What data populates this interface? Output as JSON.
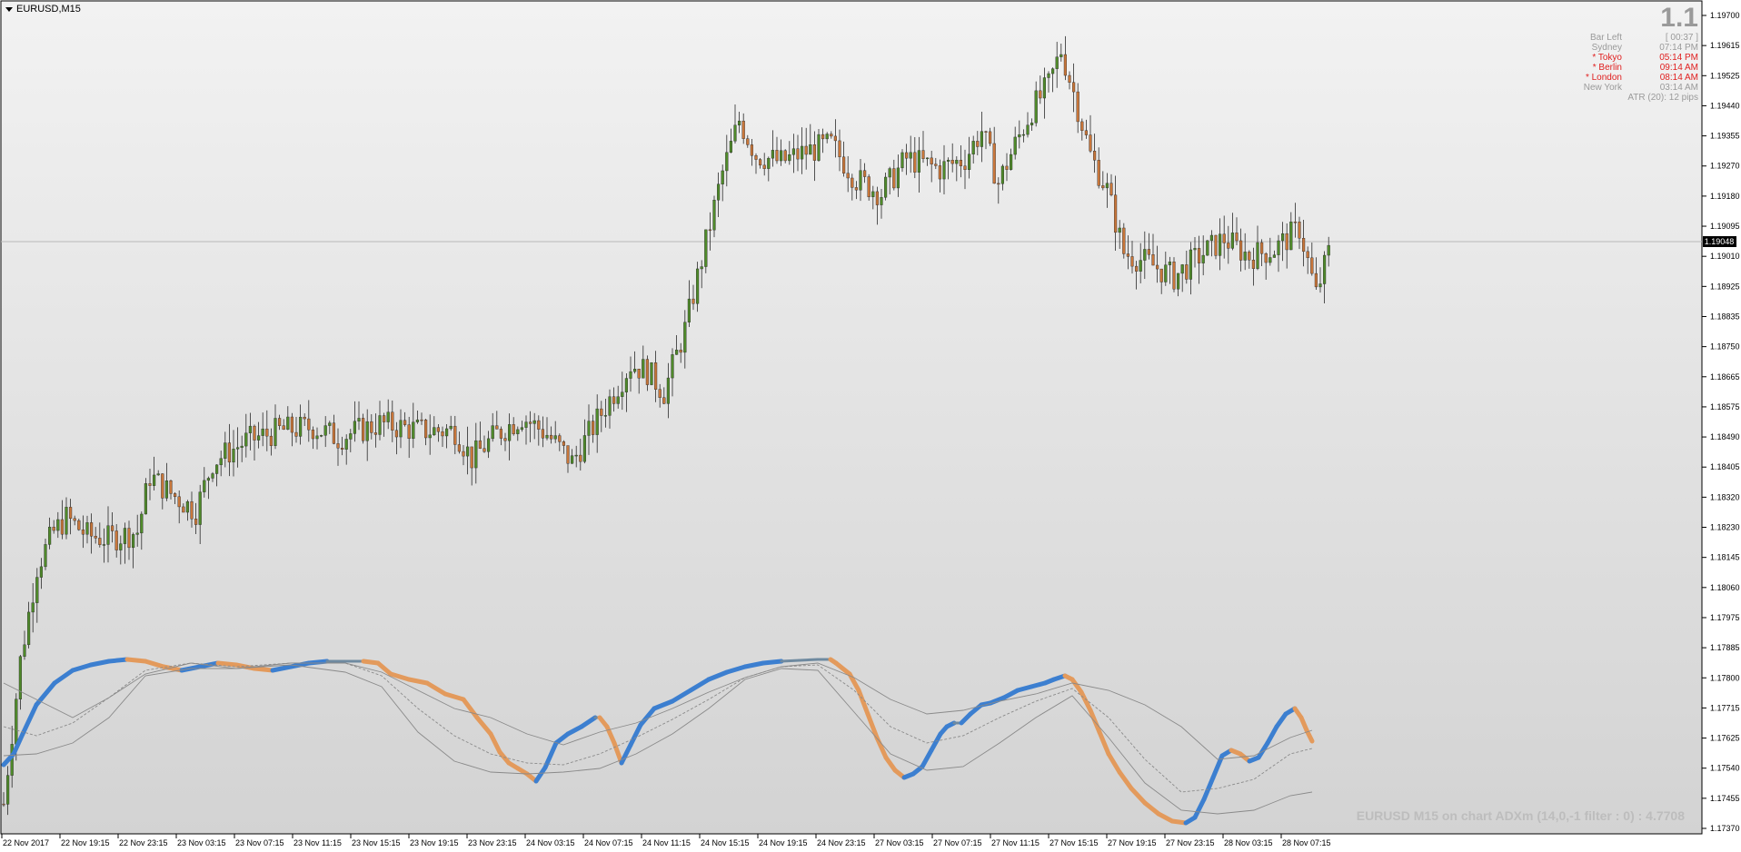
{
  "window": {
    "symbol": "EURUSD,M15"
  },
  "info_panel": {
    "spread": "1.1",
    "rows": [
      {
        "label": "Bar Left",
        "value": "[ 00:37 ]",
        "red": false
      },
      {
        "label": "Sydney",
        "value": "07:14 PM",
        "red": false
      },
      {
        "label": "* Tokyo",
        "value": "05:14 PM",
        "red": true
      },
      {
        "label": "* Berlin",
        "value": "09:14 AM",
        "red": true
      },
      {
        "label": "* London",
        "value": "08:14 AM",
        "red": true
      },
      {
        "label": "New York",
        "value": "03:14 AM",
        "red": false
      }
    ],
    "atr": "ATR (20): 12 pips"
  },
  "indicator_caption": "EURUSD M15 on chart ADXm (14,0,-1 filter : 0) : 4.7708",
  "current_price": "1.19048",
  "colors": {
    "bull": "#4f8a2a",
    "bear": "#c8763a",
    "adx_up": "#3c7fd0",
    "adx_down": "#e39a5c",
    "adx_neutral": "#6f8aa0",
    "band": "#8a8a8a"
  },
  "chart_data": {
    "type": "candlestick",
    "y_ticks": [
      "1.19700",
      "1.19615",
      "1.19525",
      "1.19440",
      "1.19355",
      "1.19270",
      "1.19180",
      "1.19095",
      "1.19010",
      "1.18925",
      "1.18835",
      "1.18750",
      "1.18665",
      "1.18575",
      "1.18490",
      "1.18405",
      "1.18320",
      "1.18230",
      "1.18145",
      "1.18060",
      "1.17975",
      "1.17885",
      "1.17800",
      "1.17715",
      "1.17625",
      "1.17540",
      "1.17455",
      "1.17370"
    ],
    "x_ticks": [
      "22 Nov 2017",
      "22 Nov 19:15",
      "22 Nov 23:15",
      "23 Nov 03:15",
      "23 Nov 07:15",
      "23 Nov 11:15",
      "23 Nov 15:15",
      "23 Nov 19:15",
      "23 Nov 23:15",
      "24 Nov 03:15",
      "24 Nov 07:15",
      "24 Nov 11:15",
      "24 Nov 15:15",
      "24 Nov 19:15",
      "24 Nov 23:15",
      "27 Nov 03:15",
      "27 Nov 07:15",
      "27 Nov 11:15",
      "27 Nov 15:15",
      "27 Nov 19:15",
      "27 Nov 23:15",
      "28 Nov 03:15",
      "28 Nov 07:15"
    ],
    "ylim": [
      1.1737,
      1.197
    ],
    "close_path": [
      [
        0,
        1.1744
      ],
      [
        4,
        1.1785
      ],
      [
        8,
        1.1812
      ],
      [
        12,
        1.1822
      ],
      [
        15,
        1.1826
      ],
      [
        20,
        1.1821
      ],
      [
        25,
        1.182
      ],
      [
        32,
        1.1822
      ],
      [
        35,
        1.1838
      ],
      [
        40,
        1.1833
      ],
      [
        46,
        1.1828
      ],
      [
        50,
        1.1842
      ],
      [
        58,
        1.1848
      ],
      [
        66,
        1.1851
      ],
      [
        74,
        1.1852
      ],
      [
        80,
        1.1849
      ],
      [
        90,
        1.1853
      ],
      [
        100,
        1.1851
      ],
      [
        108,
        1.1851
      ],
      [
        112,
        1.1843
      ],
      [
        118,
        1.185
      ],
      [
        124,
        1.1855
      ],
      [
        130,
        1.185
      ],
      [
        136,
        1.1842
      ],
      [
        140,
        1.185
      ],
      [
        146,
        1.1862
      ],
      [
        150,
        1.187
      ],
      [
        154,
        1.1868
      ],
      [
        158,
        1.1862
      ],
      [
        163,
        1.188
      ],
      [
        168,
        1.1905
      ],
      [
        172,
        1.1925
      ],
      [
        176,
        1.194
      ],
      [
        180,
        1.193
      ],
      [
        186,
        1.1928
      ],
      [
        192,
        1.1931
      ],
      [
        198,
        1.1933
      ],
      [
        204,
        1.1923
      ],
      [
        210,
        1.1919
      ],
      [
        216,
        1.1929
      ],
      [
        224,
        1.1926
      ],
      [
        230,
        1.1929
      ],
      [
        234,
        1.1937
      ],
      [
        238,
        1.1922
      ],
      [
        242,
        1.1933
      ],
      [
        246,
        1.1943
      ],
      [
        250,
        1.195
      ],
      [
        253,
        1.196
      ],
      [
        256,
        1.1948
      ],
      [
        260,
        1.193
      ],
      [
        264,
        1.192
      ],
      [
        268,
        1.1902
      ],
      [
        274,
        1.1899
      ],
      [
        280,
        1.1895
      ],
      [
        286,
        1.1901
      ],
      [
        292,
        1.1906
      ],
      [
        298,
        1.1901
      ],
      [
        304,
        1.1903
      ],
      [
        310,
        1.1909
      ],
      [
        314,
        1.189
      ],
      [
        317,
        1.1902
      ]
    ]
  }
}
